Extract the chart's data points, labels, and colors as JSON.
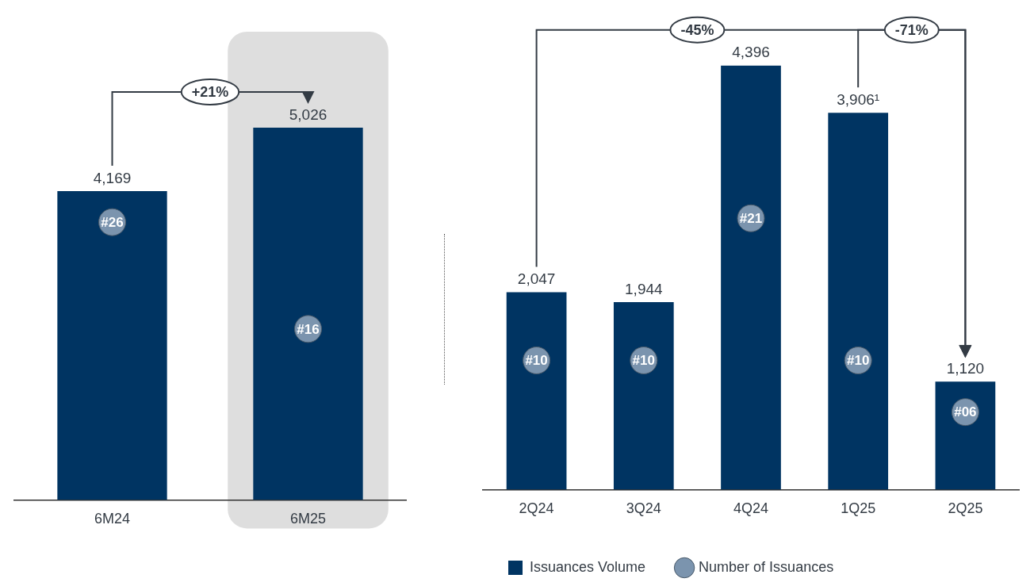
{
  "chart_data": [
    {
      "type": "bar",
      "categories": [
        "6M24",
        "6M25"
      ],
      "series": [
        {
          "color": "#003462",
          "values": [
            4169,
            5026
          ],
          "value_labels": [
            "4,169",
            "5,026"
          ]
        },
        {
          "type": "scatter",
          "axis": "y2",
          "color": "#7b94ae",
          "values": [
            26,
            16
          ],
          "value_labels": [
            "#26",
            "#16"
          ]
        }
      ],
      "bands": [
        {
          "axis": "x",
          "from": "6M25",
          "to": "6M25",
          "color": "#dedede"
        }
      ],
      "annotations": [
        "+21%"
      ],
      "marker": "circle",
      "grid": false,
      "legend": false
    },
    {
      "type": "bar",
      "categories": [
        "2Q24",
        "3Q24",
        "4Q24",
        "1Q25",
        "2Q25"
      ],
      "series": [
        {
          "name": "Issuances Volume",
          "color": "#003462",
          "values": [
            2047,
            1944,
            4396,
            3906,
            1120
          ],
          "value_labels": [
            "2,047",
            "1,944",
            "4,396",
            "3,906¹",
            "1,120"
          ]
        },
        {
          "type": "scatter",
          "axis": "y2",
          "name": "Number of Issuances",
          "color": "#7b94ae",
          "values": [
            10,
            10,
            21,
            10,
            6
          ],
          "value_labels": [
            "#10",
            "#10",
            "#21",
            "#10",
            "#06"
          ]
        }
      ],
      "annotations": [
        "-45%",
        "-71%"
      ],
      "marker": "circle",
      "grid": false,
      "legend": "bottom"
    }
  ]
}
